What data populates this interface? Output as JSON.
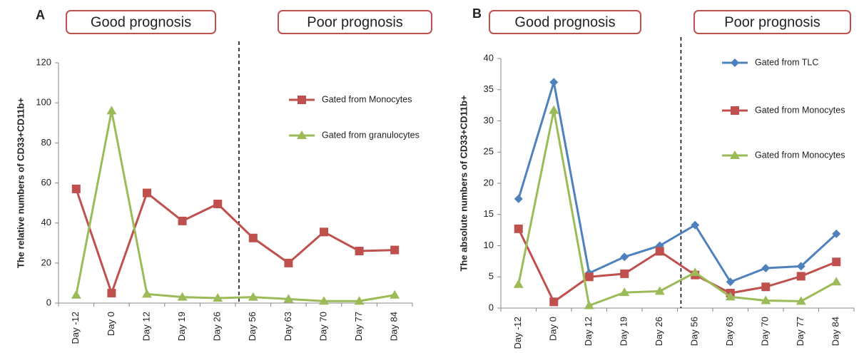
{
  "chart_data": [
    {
      "type": "line",
      "label": "A",
      "headers": [
        "Good prognosis",
        "Poor prognosis"
      ],
      "ylabel": "The relative numbers of CD33+CD11b+",
      "categories": [
        "Day -12",
        "Day 0",
        "Day 12",
        "Day 19",
        "Day 26",
        "Day 56",
        "Day 63",
        "Day 70",
        "Day 77",
        "Day 84"
      ],
      "ylim": [
        0,
        120
      ],
      "yticks": [
        0,
        20,
        40,
        60,
        80,
        100,
        120
      ],
      "legend": "upper right",
      "series": [
        {
          "name": "Gated from Monocytes",
          "color": "#c0504d",
          "marker": "square",
          "values": [
            57,
            5,
            55,
            41,
            49.5,
            32.5,
            20,
            35.5,
            26,
            26.5
          ]
        },
        {
          "name": "Gated from granulocytes",
          "color": "#9bbb59",
          "marker": "triangle",
          "values": [
            4,
            96,
            4.5,
            3,
            2.5,
            3,
            2,
            1,
            1,
            4
          ]
        }
      ]
    },
    {
      "type": "line",
      "label": "B",
      "headers": [
        "Good prognosis",
        "Poor prognosis"
      ],
      "ylabel": "The absolute numbers of CD33+CD11b+",
      "categories": [
        "Day -12",
        "Day 0",
        "Day 12",
        "Day 19",
        "Day 26",
        "Day 56",
        "Day 63",
        "Day 70",
        "Day 77",
        "Day 84"
      ],
      "ylim": [
        0,
        40
      ],
      "yticks": [
        0,
        5,
        10,
        15,
        20,
        25,
        30,
        35,
        40
      ],
      "legend": "upper right",
      "series": [
        {
          "name": "Gated from TLC",
          "color": "#4f81bd",
          "marker": "diamond",
          "values": [
            17.5,
            36.2,
            5.6,
            8.2,
            10,
            13.3,
            4.2,
            6.4,
            6.7,
            11.9
          ]
        },
        {
          "name": "Gated from Monocytes",
          "color": "#c0504d",
          "marker": "square",
          "values": [
            12.7,
            1,
            5,
            5.5,
            9.1,
            5.3,
            2.4,
            3.4,
            5.1,
            7.4
          ]
        },
        {
          "name": "Gated from Monocytes",
          "color": "#9bbb59",
          "marker": "triangle",
          "values": [
            3.8,
            31.7,
            0.4,
            2.5,
            2.7,
            5.7,
            1.8,
            1.2,
            1.1,
            4.2
          ]
        }
      ]
    }
  ]
}
